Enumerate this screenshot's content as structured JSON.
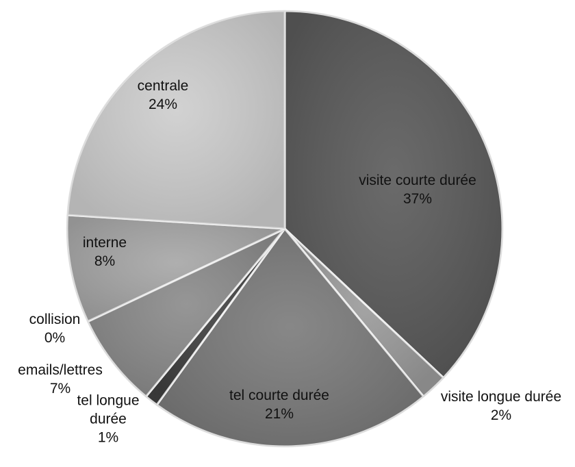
{
  "chart_data": {
    "type": "pie",
    "title": "",
    "slices": [
      {
        "label": "visite courte durée",
        "value": 37,
        "value_label": "37%",
        "color": "#5a5a5a"
      },
      {
        "label": "visite longue durée",
        "value": 2,
        "value_label": "2%",
        "color": "#9a9a9a"
      },
      {
        "label": "tel courte durée",
        "value": 21,
        "value_label": "21%",
        "color": "#7a7a7a"
      },
      {
        "label": "tel longue durée",
        "value": 1,
        "value_label": "1%",
        "color": "#3f3f3f"
      },
      {
        "label": "emails/lettres",
        "value": 7,
        "value_label": "7%",
        "color": "#8a8a8a"
      },
      {
        "label": "collision",
        "value": 0,
        "value_label": "0%",
        "color": "#b0b0b0"
      },
      {
        "label": "interne",
        "value": 8,
        "value_label": "8%",
        "color": "#a6a6a6"
      },
      {
        "label": "centrale",
        "value": 24,
        "value_label": "24%",
        "color": "#cdcdcd"
      }
    ],
    "legend": "none",
    "start_angle": "top, clockwise"
  }
}
